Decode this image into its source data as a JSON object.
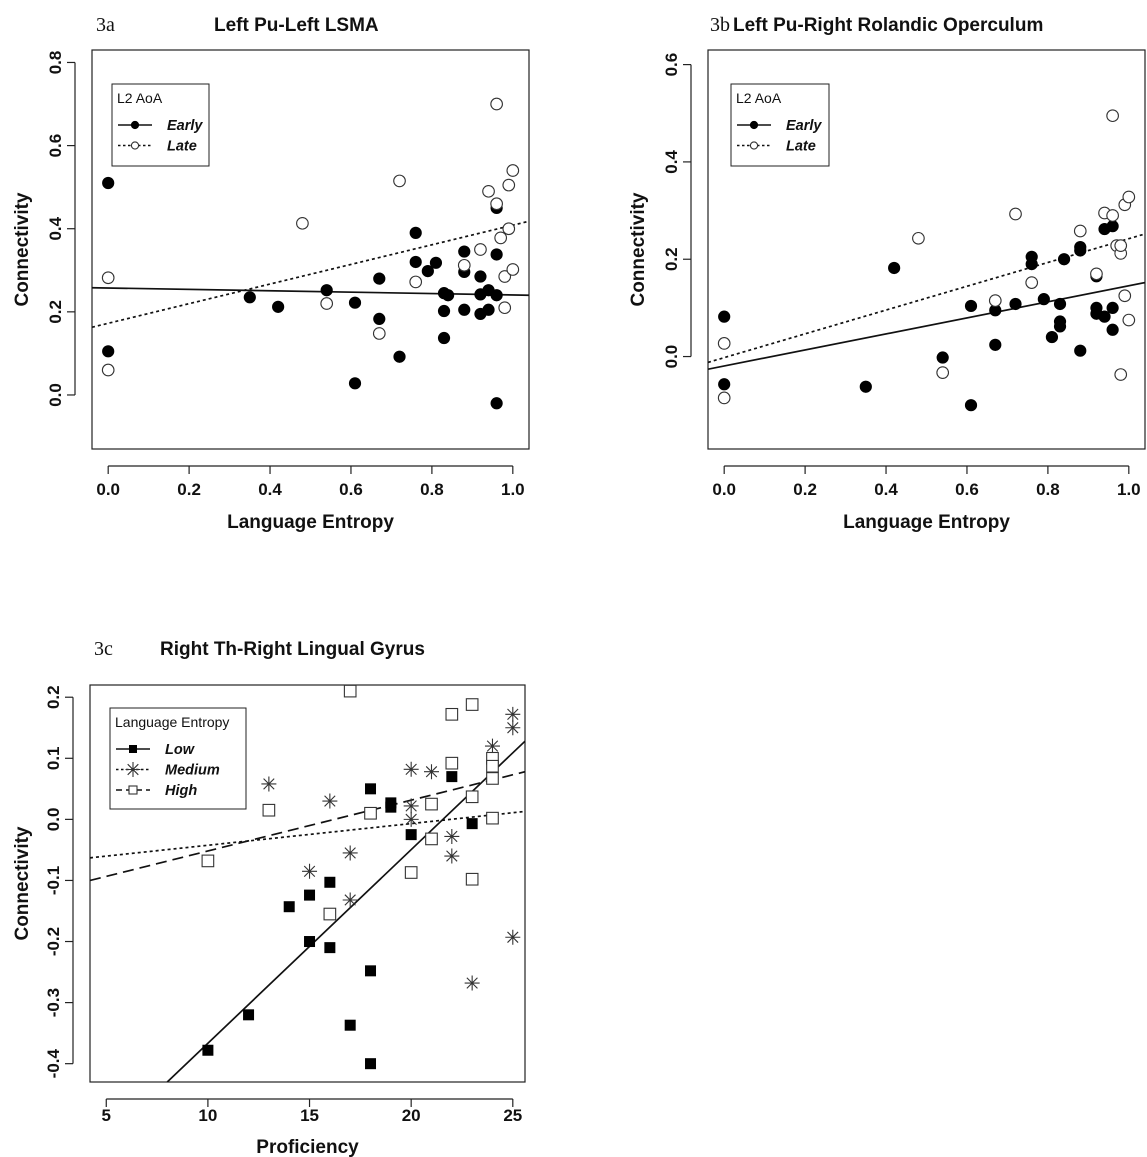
{
  "chart_data": [
    {
      "panel_id": "3a",
      "type": "scatter",
      "title": "Left Pu-Left LSMA",
      "xlabel": "Language Entropy",
      "ylabel": "Connectivity",
      "xlim": [
        -0.04,
        1.04
      ],
      "ylim": [
        -0.13,
        0.83
      ],
      "xticks": [
        0.0,
        0.2,
        0.4,
        0.6,
        0.8,
        1.0
      ],
      "yticks": [
        0.0,
        0.2,
        0.4,
        0.6,
        0.8
      ],
      "xtick_labels": [
        "0.0",
        "0.2",
        "0.4",
        "0.6",
        "0.8",
        "1.0"
      ],
      "ytick_labels": [
        "0.0",
        "0.2",
        "0.4",
        "0.6",
        "0.8"
      ],
      "grid": false,
      "legend": {
        "title": "L2 AoA",
        "position": "top-left",
        "entries": [
          {
            "label": "Early",
            "line": "solid",
            "marker": "filled-circle"
          },
          {
            "label": "Late",
            "line": "dotted",
            "marker": "open-circle"
          }
        ]
      },
      "series": [
        {
          "name": "Early",
          "marker": "filled-circle",
          "line": "solid",
          "fit": [
            [
              -0.04,
              0.258
            ],
            [
              1.04,
              0.24
            ]
          ],
          "points": [
            [
              0.0,
              0.51
            ],
            [
              0.0,
              0.105
            ],
            [
              0.35,
              0.235
            ],
            [
              0.42,
              0.212
            ],
            [
              0.54,
              0.252
            ],
            [
              0.61,
              0.222
            ],
            [
              0.61,
              0.028
            ],
            [
              0.67,
              0.28
            ],
            [
              0.67,
              0.183
            ],
            [
              0.72,
              0.092
            ],
            [
              0.76,
              0.39
            ],
            [
              0.76,
              0.32
            ],
            [
              0.79,
              0.298
            ],
            [
              0.81,
              0.318
            ],
            [
              0.83,
              0.245
            ],
            [
              0.83,
              0.202
            ],
            [
              0.83,
              0.137
            ],
            [
              0.84,
              0.24
            ],
            [
              0.88,
              0.345
            ],
            [
              0.88,
              0.296
            ],
            [
              0.88,
              0.205
            ],
            [
              0.92,
              0.285
            ],
            [
              0.92,
              0.242
            ],
            [
              0.92,
              0.195
            ],
            [
              0.94,
              0.252
            ],
            [
              0.94,
              0.205
            ],
            [
              0.96,
              0.45
            ],
            [
              0.96,
              0.338
            ],
            [
              0.96,
              0.24
            ],
            [
              0.96,
              -0.02
            ]
          ]
        },
        {
          "name": "Late",
          "marker": "open-circle",
          "line": "dotted",
          "fit": [
            [
              -0.04,
              0.163
            ],
            [
              1.04,
              0.418
            ]
          ],
          "points": [
            [
              0.0,
              0.282
            ],
            [
              0.0,
              0.06
            ],
            [
              0.48,
              0.413
            ],
            [
              0.54,
              0.22
            ],
            [
              0.67,
              0.148
            ],
            [
              0.72,
              0.515
            ],
            [
              0.76,
              0.272
            ],
            [
              0.88,
              0.312
            ],
            [
              0.92,
              0.35
            ],
            [
              0.94,
              0.49
            ],
            [
              0.96,
              0.7
            ],
            [
              0.96,
              0.46
            ],
            [
              0.97,
              0.378
            ],
            [
              0.98,
              0.21
            ],
            [
              0.98,
              0.285
            ],
            [
              0.99,
              0.4
            ],
            [
              0.99,
              0.505
            ],
            [
              1.0,
              0.54
            ],
            [
              1.0,
              0.302
            ]
          ]
        }
      ]
    },
    {
      "panel_id": "3b",
      "type": "scatter",
      "title": "Left Pu-Right Rolandic Operculum",
      "xlabel": "Language Entropy",
      "ylabel": "Connectivity",
      "xlim": [
        -0.04,
        1.04
      ],
      "ylim": [
        -0.19,
        0.63
      ],
      "xticks": [
        0.0,
        0.2,
        0.4,
        0.6,
        0.8,
        1.0
      ],
      "yticks": [
        0.0,
        0.2,
        0.4,
        0.6
      ],
      "xtick_labels": [
        "0.0",
        "0.2",
        "0.4",
        "0.6",
        "0.8",
        "1.0"
      ],
      "ytick_labels": [
        "0.0",
        "0.2",
        "0.4",
        "0.6"
      ],
      "grid": false,
      "legend": {
        "title": "L2 AoA",
        "position": "top-left",
        "entries": [
          {
            "label": "Early",
            "line": "solid",
            "marker": "filled-circle"
          },
          {
            "label": "Late",
            "line": "dotted",
            "marker": "open-circle"
          }
        ]
      },
      "series": [
        {
          "name": "Early",
          "marker": "filled-circle",
          "line": "solid",
          "fit": [
            [
              -0.04,
              -0.026
            ],
            [
              1.04,
              0.152
            ]
          ],
          "points": [
            [
              0.0,
              0.082
            ],
            [
              0.0,
              -0.057
            ],
            [
              0.35,
              -0.062
            ],
            [
              0.42,
              0.182
            ],
            [
              0.54,
              -0.002
            ],
            [
              0.61,
              0.104
            ],
            [
              0.61,
              -0.1
            ],
            [
              0.67,
              0.095
            ],
            [
              0.67,
              0.024
            ],
            [
              0.72,
              0.108
            ],
            [
              0.76,
              0.205
            ],
            [
              0.76,
              0.19
            ],
            [
              0.79,
              0.118
            ],
            [
              0.81,
              0.04
            ],
            [
              0.83,
              0.108
            ],
            [
              0.83,
              0.072
            ],
            [
              0.83,
              0.062
            ],
            [
              0.84,
              0.2
            ],
            [
              0.88,
              0.225
            ],
            [
              0.88,
              0.218
            ],
            [
              0.88,
              0.012
            ],
            [
              0.92,
              0.165
            ],
            [
              0.92,
              0.1
            ],
            [
              0.92,
              0.088
            ],
            [
              0.94,
              0.262
            ],
            [
              0.94,
              0.082
            ],
            [
              0.96,
              0.268
            ],
            [
              0.96,
              0.1
            ],
            [
              0.96,
              0.055
            ]
          ]
        },
        {
          "name": "Late",
          "marker": "open-circle",
          "line": "dotted",
          "fit": [
            [
              -0.04,
              -0.012
            ],
            [
              1.04,
              0.252
            ]
          ],
          "points": [
            [
              0.0,
              0.027
            ],
            [
              0.0,
              -0.085
            ],
            [
              0.48,
              0.243
            ],
            [
              0.54,
              -0.033
            ],
            [
              0.67,
              0.115
            ],
            [
              0.72,
              0.293
            ],
            [
              0.76,
              0.152
            ],
            [
              0.88,
              0.258
            ],
            [
              0.92,
              0.17
            ],
            [
              0.94,
              0.295
            ],
            [
              0.96,
              0.495
            ],
            [
              0.96,
              0.29
            ],
            [
              0.97,
              0.228
            ],
            [
              0.98,
              0.212
            ],
            [
              0.98,
              0.228
            ],
            [
              0.98,
              -0.037
            ],
            [
              0.99,
              0.125
            ],
            [
              0.99,
              0.312
            ],
            [
              1.0,
              0.328
            ],
            [
              1.0,
              0.075
            ]
          ]
        }
      ]
    },
    {
      "panel_id": "3c",
      "type": "scatter",
      "title": "Right Th-Right Lingual Gyrus",
      "xlabel": "Proficiency",
      "ylabel": "Connectivity",
      "xlim": [
        4.2,
        25.6
      ],
      "ylim": [
        -0.43,
        0.22
      ],
      "xticks": [
        5,
        10,
        15,
        20,
        25
      ],
      "yticks": [
        -0.4,
        -0.3,
        -0.2,
        -0.1,
        0.0,
        0.1,
        0.2
      ],
      "xtick_labels": [
        "5",
        "10",
        "15",
        "20",
        "25"
      ],
      "ytick_labels": [
        "-0.4",
        "-0.3",
        "-0.2",
        "-0.1",
        "0.0",
        "0.1",
        "0.2"
      ],
      "grid": false,
      "legend": {
        "title": "Language Entropy",
        "position": "top-left",
        "entries": [
          {
            "label": "Low",
            "line": "solid",
            "marker": "filled-square"
          },
          {
            "label": "Medium",
            "line": "dotted",
            "marker": "asterisk"
          },
          {
            "label": "High",
            "line": "dashed",
            "marker": "open-square"
          }
        ]
      },
      "series": [
        {
          "name": "Low",
          "marker": "filled-square",
          "line": "solid",
          "fit": [
            [
              8.0,
              -0.43
            ],
            [
              25.6,
              0.128
            ]
          ],
          "points": [
            [
              10,
              -0.378
            ],
            [
              12,
              -0.32
            ],
            [
              14,
              -0.143
            ],
            [
              15,
              -0.124
            ],
            [
              15,
              -0.2
            ],
            [
              16,
              -0.103
            ],
            [
              16,
              -0.21
            ],
            [
              17,
              -0.337
            ],
            [
              18,
              0.05
            ],
            [
              18,
              -0.248
            ],
            [
              18,
              -0.4
            ],
            [
              19,
              0.027
            ],
            [
              19,
              0.02
            ],
            [
              20,
              -0.025
            ],
            [
              21,
              0.025
            ],
            [
              22,
              0.07
            ],
            [
              23,
              -0.007
            ]
          ]
        },
        {
          "name": "Medium",
          "marker": "asterisk",
          "line": "dotted",
          "fit": [
            [
              4.2,
              -0.063
            ],
            [
              25.6,
              0.013
            ]
          ],
          "points": [
            [
              13,
              0.058
            ],
            [
              15,
              -0.085
            ],
            [
              16,
              0.03
            ],
            [
              17,
              -0.055
            ],
            [
              17,
              -0.132
            ],
            [
              20,
              0.082
            ],
            [
              20,
              0.022
            ],
            [
              20,
              0.0
            ],
            [
              21,
              0.078
            ],
            [
              22,
              -0.028
            ],
            [
              22,
              -0.06
            ],
            [
              23,
              -0.268
            ],
            [
              24,
              0.12
            ],
            [
              25,
              0.172
            ],
            [
              25,
              0.15
            ],
            [
              25,
              -0.193
            ]
          ]
        },
        {
          "name": "High",
          "marker": "open-square",
          "line": "dashed",
          "fit": [
            [
              4.2,
              -0.1
            ],
            [
              25.6,
              0.078
            ]
          ],
          "points": [
            [
              10,
              -0.068
            ],
            [
              13,
              0.015
            ],
            [
              16,
              -0.155
            ],
            [
              17,
              0.21
            ],
            [
              18,
              0.01
            ],
            [
              20,
              -0.087
            ],
            [
              21,
              0.025
            ],
            [
              21,
              -0.032
            ],
            [
              22,
              0.172
            ],
            [
              22,
              0.092
            ],
            [
              23,
              0.188
            ],
            [
              23,
              0.037
            ],
            [
              23,
              -0.098
            ],
            [
              24,
              0.1
            ],
            [
              24,
              0.087
            ],
            [
              24,
              0.067
            ],
            [
              24,
              0.002
            ]
          ]
        }
      ]
    }
  ]
}
